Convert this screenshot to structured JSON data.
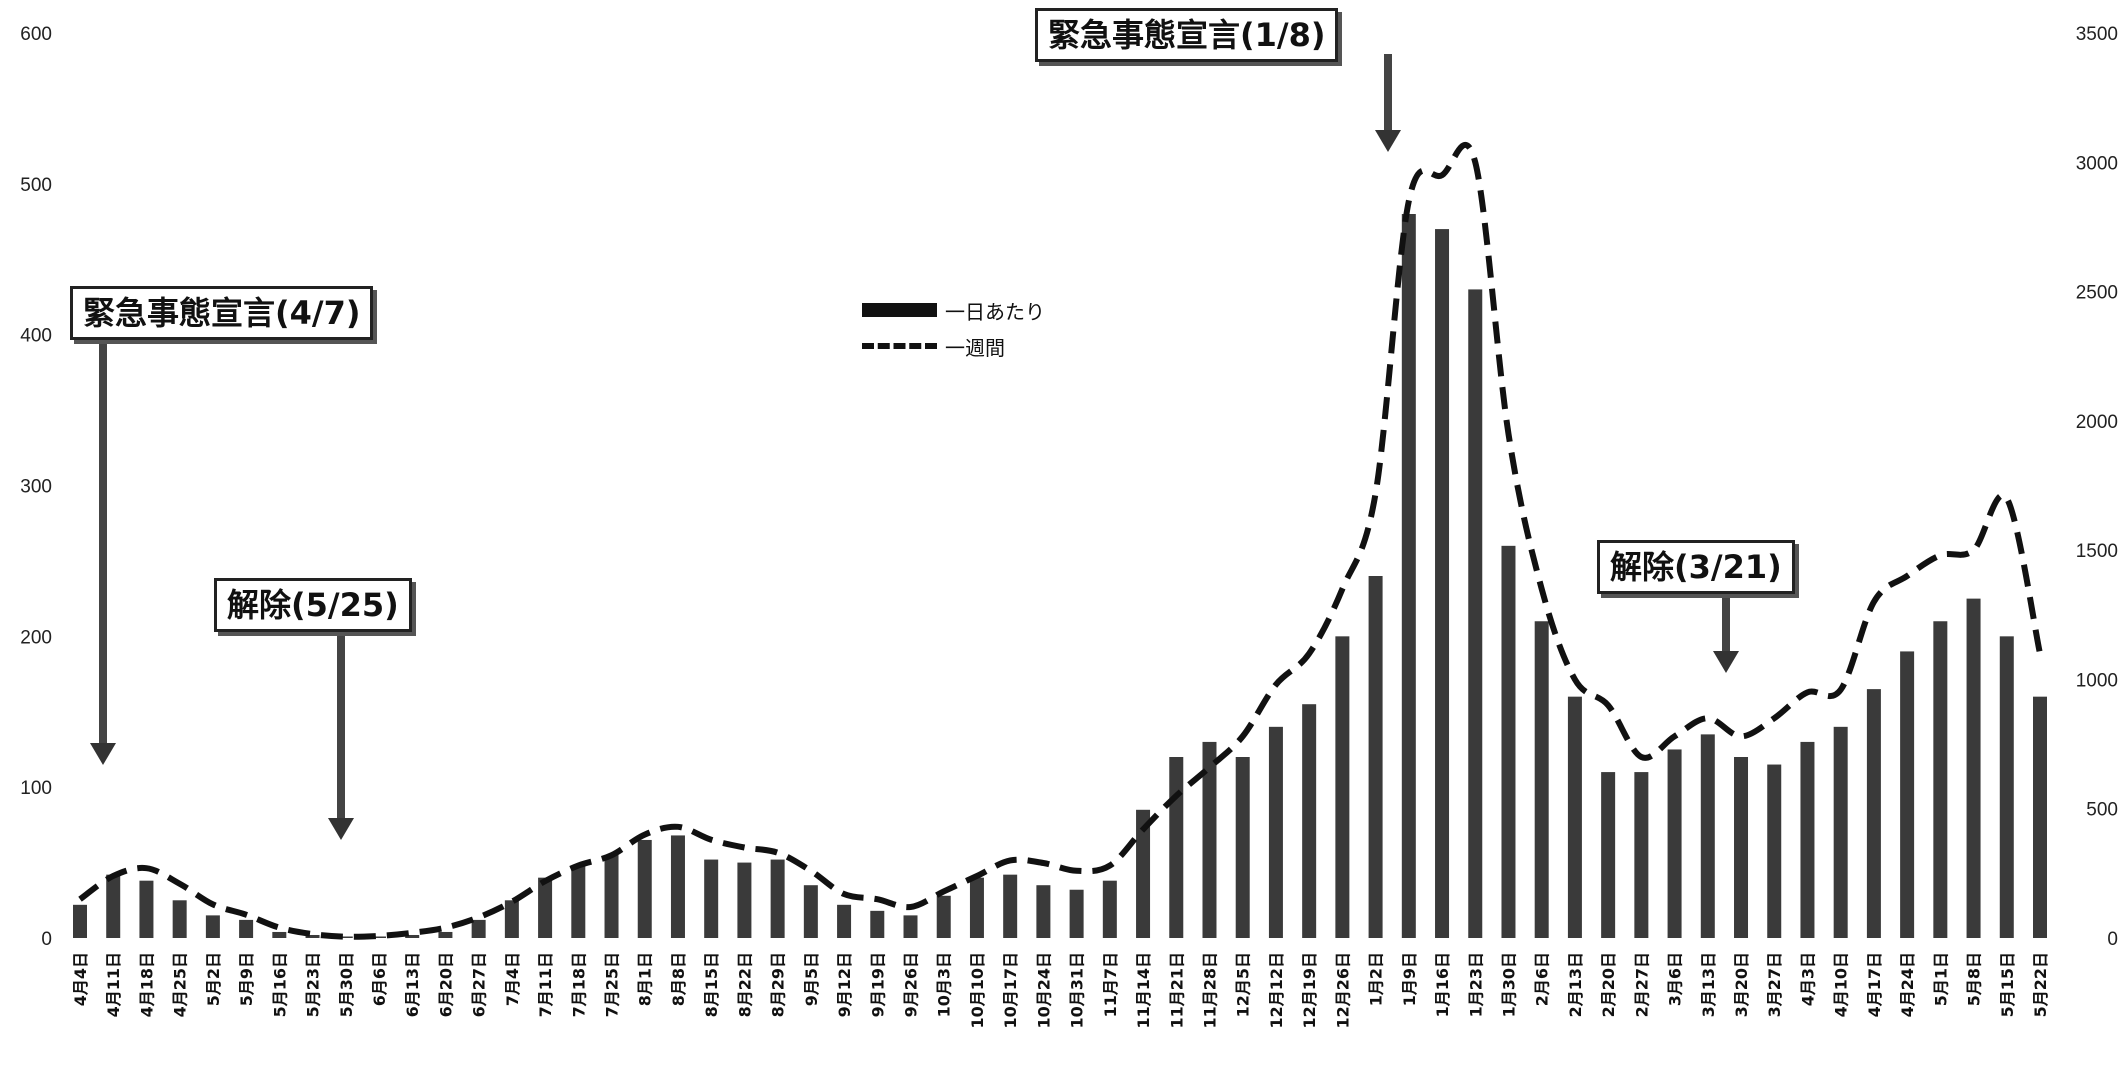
{
  "chart_data": {
    "type": "bar",
    "title": "",
    "xlabel": "",
    "ylabel": "",
    "y_left": {
      "ticks": [
        0,
        100,
        200,
        300,
        400,
        500,
        600
      ],
      "ylim": [
        0,
        600
      ]
    },
    "y_right": {
      "ticks": [
        0,
        500,
        1000,
        1500,
        2000,
        2500,
        3000,
        3500
      ],
      "ylim": [
        0,
        3500
      ]
    },
    "grid": false,
    "legend_position": "center-top",
    "categories": [
      "4月4日",
      "4月11日",
      "4月18日",
      "4月25日",
      "5月2日",
      "5月9日",
      "5月16日",
      "5月23日",
      "5月30日",
      "6月6日",
      "6月13日",
      "6月20日",
      "6月27日",
      "7月4日",
      "7月11日",
      "7月18日",
      "7月25日",
      "8月1日",
      "8月8日",
      "8月15日",
      "8月22日",
      "8月29日",
      "9月5日",
      "9月12日",
      "9月19日",
      "9月26日",
      "10月3日",
      "10月10日",
      "10月17日",
      "10月24日",
      "10月31日",
      "11月7日",
      "11月14日",
      "11月21日",
      "11月28日",
      "12月5日",
      "12月12日",
      "12月19日",
      "12月26日",
      "1月2日",
      "1月9日",
      "1月16日",
      "1月23日",
      "1月30日",
      "2月6日",
      "2月13日",
      "2月20日",
      "2月27日",
      "3月6日",
      "3月13日",
      "3月20日",
      "3月27日",
      "4月3日",
      "4月10日",
      "4月17日",
      "4月24日",
      "5月1日",
      "5月8日",
      "5月15日",
      "5月22日"
    ],
    "series": [
      {
        "name": "一日あたり",
        "axis": "left",
        "values": [
          22,
          42,
          38,
          25,
          15,
          12,
          4,
          2,
          1,
          1,
          2,
          4,
          12,
          25,
          40,
          48,
          55,
          65,
          68,
          52,
          50,
          52,
          35,
          22,
          18,
          15,
          28,
          40,
          42,
          35,
          32,
          38,
          85,
          120,
          130,
          120,
          140,
          155,
          200,
          240,
          480,
          470,
          430,
          260,
          210,
          160,
          110,
          110,
          125,
          135,
          120,
          115,
          130,
          140,
          165,
          190,
          210,
          225,
          200,
          160
        ]
      },
      {
        "name": "一週間",
        "axis": "right",
        "values": [
          150,
          240,
          270,
          210,
          130,
          90,
          40,
          15,
          5,
          8,
          20,
          40,
          80,
          140,
          220,
          280,
          320,
          400,
          430,
          380,
          350,
          330,
          260,
          170,
          150,
          120,
          180,
          240,
          300,
          290,
          260,
          280,
          420,
          550,
          660,
          780,
          980,
          1100,
          1350,
          1720,
          2850,
          2950,
          3000,
          1950,
          1350,
          1000,
          900,
          700,
          780,
          850,
          780,
          850,
          950,
          960,
          1300,
          1400,
          1480,
          1500,
          1700,
          1100
        ]
      }
    ]
  },
  "annotations": {
    "emergency1": "緊急事態宣言(4/7)",
    "lift1": "解除(5/25)",
    "emergency2": "緊急事態宣言(1/8)",
    "lift2": "解除(3/21)"
  },
  "legend": {
    "daily": "一日あたり",
    "weekly": "一週間"
  }
}
